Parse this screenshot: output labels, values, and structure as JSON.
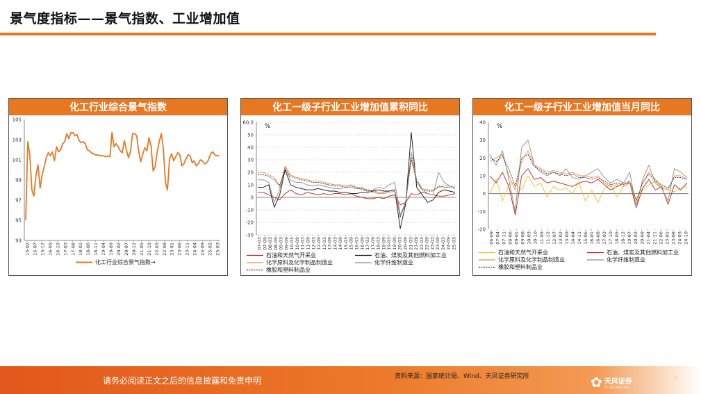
{
  "slide": {
    "title": "景气度指标——景气指数、工业增加值"
  },
  "footer": {
    "disclaimer": "请务必阅读正文之后的信息披露和免责申明",
    "source": "资料来源：国家统计局、Wind、天风证券研究所",
    "logo_cn": "天风证券",
    "logo_en": "TF SECURITIES",
    "page_number": "6"
  },
  "colors": {
    "accent": "#e87722",
    "series_orange": "#e87722",
    "series_red": "#c0201a",
    "series_black": "#111111",
    "series_gray": "#8c8c8c",
    "series_yellow": "#f0c020",
    "series_salmon": "#f28a4a",
    "series_dark": "#333333"
  },
  "chart_data": [
    {
      "type": "line",
      "title": "化工行业综合景气指数",
      "ylim": [
        93,
        105
      ],
      "yticks": [
        93,
        95,
        97,
        99,
        101,
        103,
        105
      ],
      "x_labels": [
        "15-02",
        "15-07",
        "15-12",
        "16-05",
        "16-10",
        "17-03",
        "17-08",
        "18-01",
        "18-06",
        "18-11",
        "19-04",
        "19-09",
        "20-02",
        "20-07",
        "20-12",
        "21-05",
        "21-10",
        "22-03",
        "22-08",
        "23-01",
        "23-06",
        "23-11",
        "24-04",
        "24-09",
        "25-02",
        "25-03"
      ],
      "legend_position": "bottom",
      "grid": false,
      "series": [
        {
          "name": "化工行业综合景气指数",
          "color": "#e87722",
          "values": [
            95.0,
            102.8,
            101.5,
            98.0,
            97.4,
            99.5,
            100.5,
            98.2,
            99.5,
            100.3,
            101.2,
            101.7,
            101.4,
            101.8,
            100.9,
            102.3,
            101.8,
            102.0,
            102.6,
            102.8,
            103.6,
            103.1,
            103.7,
            103.7,
            103.4,
            103.5,
            102.9,
            102.7,
            102.8,
            102.6,
            102.0,
            101.9,
            101.7,
            101.6,
            101.5,
            101.5,
            101.4,
            101.4,
            101.4,
            101.3,
            101.4,
            101.3,
            103.7,
            102.3,
            102.6,
            102.3,
            101.9,
            101.7,
            102.9,
            102.0,
            101.2,
            101.8,
            103.6,
            103.6,
            103.4,
            101.8,
            100.8,
            101.6,
            102.2,
            101.9,
            103.2,
            102.4,
            99.9,
            100.3,
            101.8,
            102.8,
            103.6,
            102.1,
            98.8,
            98.0,
            101.1,
            101.6,
            100.9,
            101.3,
            101.7,
            101.5,
            100.4,
            100.6,
            101.1,
            101.5,
            101.4,
            100.7,
            100.9,
            100.4,
            100.6,
            101.0,
            100.9,
            100.6,
            100.7,
            101.0,
            101.6,
            101.8,
            101.5,
            101.4,
            101.4
          ]
        }
      ]
    },
    {
      "type": "line",
      "title": "化工一级子行业工业增加值累积同比",
      "unit": "%",
      "ylim": [
        -30,
        60
      ],
      "yticks": [
        -30,
        -20,
        -10,
        0,
        10,
        20,
        30,
        40,
        50,
        60
      ],
      "ytick_labels": [
        "-30",
        "-20",
        "-10",
        "0",
        "10",
        "20",
        "30",
        "40",
        "50",
        "60.0"
      ],
      "x_labels": [
        "07-03",
        "07-09",
        "08-03",
        "08-09",
        "09-03",
        "09-09",
        "10-03",
        "10-09",
        "11-03",
        "11-09",
        "12-03",
        "12-09",
        "13-03",
        "13-09",
        "14-03",
        "14-09",
        "15-03",
        "15-09",
        "16-03",
        "16-09",
        "17-03",
        "17-09",
        "18-03",
        "18-09",
        "19-03",
        "19-09",
        "20-03",
        "20-09",
        "21-03",
        "21-09",
        "22-03",
        "22-09",
        "23-03",
        "23-09",
        "24-03",
        "24-09",
        "25-03"
      ],
      "legend_position": "bottom",
      "grid": true,
      "series": [
        {
          "name": "石油和天然气开采业",
          "color": "#c0201a",
          "values": [
            4,
            4,
            2,
            0,
            -2,
            3,
            6,
            3,
            2,
            4,
            3,
            2,
            3,
            2,
            3,
            3,
            2,
            3,
            1,
            0,
            -1,
            -1,
            0,
            -1,
            1,
            2,
            -6,
            -4,
            3,
            2,
            4,
            3,
            2,
            1,
            1,
            2,
            3
          ]
        },
        {
          "name": "石油、煤炭及其他燃料加工业",
          "color": "#111111",
          "values": [
            8,
            8,
            10,
            -8,
            2,
            22,
            10,
            8,
            7,
            6,
            6,
            7,
            6,
            5,
            5,
            4,
            4,
            3,
            3,
            4,
            4,
            5,
            6,
            5,
            5,
            6,
            -25,
            -5,
            52,
            8,
            2,
            -4,
            -2,
            4,
            6,
            5,
            4
          ]
        },
        {
          "name": "化学原料及化学制品制造业",
          "color": "#f28a4a",
          "values": [
            20,
            20,
            18,
            16,
            8,
            25,
            18,
            16,
            15,
            14,
            13,
            13,
            12,
            11,
            10,
            10,
            9,
            9,
            8,
            8,
            5,
            4,
            3,
            3,
            4,
            5,
            -15,
            -3,
            30,
            14,
            7,
            6,
            6,
            8,
            9,
            9,
            8
          ]
        },
        {
          "name": "化学纤维制造业",
          "color": "#8c8c8c",
          "values": [
            14,
            14,
            12,
            -4,
            6,
            24,
            14,
            12,
            12,
            10,
            9,
            10,
            9,
            8,
            7,
            7,
            8,
            10,
            8,
            6,
            5,
            6,
            8,
            7,
            10,
            12,
            -14,
            -4,
            36,
            14,
            6,
            3,
            2,
            20,
            12,
            9,
            8
          ]
        },
        {
          "name": "橡胶和塑料制品业",
          "color": "#333333",
          "dash": true,
          "values": [
            18,
            18,
            17,
            14,
            10,
            22,
            17,
            15,
            14,
            13,
            12,
            12,
            11,
            10,
            9,
            9,
            8,
            8,
            7,
            7,
            6,
            5,
            4,
            4,
            5,
            6,
            -16,
            -4,
            32,
            12,
            6,
            5,
            5,
            9,
            8,
            8,
            7
          ]
        }
      ]
    },
    {
      "type": "line",
      "title": "化工一级子行业工业增加值当月同比",
      "unit": "%",
      "ylim": [
        -20,
        40
      ],
      "yticks": [
        -20,
        -10,
        0,
        10,
        20,
        30,
        40
      ],
      "x_labels": [
        "06-09",
        "07-04",
        "07-11",
        "08-06",
        "09-01",
        "09-08",
        "10-03",
        "10-10",
        "11-05",
        "11-12",
        "12-07",
        "13-02",
        "13-09",
        "14-04",
        "14-11",
        "15-06",
        "16-01",
        "16-08",
        "17-03",
        "17-10",
        "18-05",
        "18-12",
        "19-07",
        "20-02",
        "20-09",
        "21-04",
        "21-11",
        "22-06",
        "23-01",
        "23-08",
        "24-03",
        "24-10"
      ],
      "legend_position": "bottom",
      "grid": false,
      "series": [
        {
          "name": "石油和天然气开采业",
          "color": "#f0c020",
          "values": [
            0,
            8,
            -4,
            5,
            6,
            2,
            10,
            4,
            6,
            -2,
            4,
            2,
            3,
            0,
            6,
            -4,
            2,
            -5,
            3,
            5,
            -2,
            4,
            6,
            -3,
            2,
            5,
            7,
            3,
            2,
            1,
            3,
            4
          ]
        },
        {
          "name": "石油、煤炭及其他燃料加工业",
          "color": "#c0201a",
          "values": [
            10,
            6,
            12,
            4,
            -12,
            10,
            14,
            8,
            9,
            6,
            7,
            6,
            5,
            4,
            6,
            7,
            6,
            8,
            5,
            2,
            4,
            6,
            6,
            -8,
            3,
            8,
            2,
            4,
            -6,
            5,
            2,
            6
          ]
        },
        {
          "name": "化学原料及化学制品制造业",
          "color": "#f28a4a",
          "values": [
            18,
            20,
            22,
            10,
            2,
            18,
            24,
            16,
            14,
            12,
            13,
            12,
            11,
            12,
            10,
            10,
            9,
            10,
            6,
            4,
            5,
            4,
            6,
            -6,
            6,
            12,
            8,
            4,
            2,
            10,
            10,
            8
          ]
        },
        {
          "name": "化学纤维制造业",
          "color": "#8c8c8c",
          "values": [
            22,
            16,
            24,
            8,
            -10,
            26,
            30,
            16,
            12,
            10,
            12,
            10,
            14,
            9,
            8,
            10,
            12,
            14,
            9,
            6,
            8,
            6,
            12,
            -8,
            8,
            16,
            6,
            3,
            -4,
            14,
            12,
            9
          ]
        },
        {
          "name": "橡胶和塑料制品业",
          "color": "#333333",
          "dash": true,
          "values": [
            20,
            18,
            21,
            14,
            4,
            20,
            22,
            15,
            13,
            11,
            12,
            11,
            10,
            11,
            9,
            9,
            8,
            9,
            7,
            5,
            6,
            5,
            7,
            -4,
            6,
            11,
            7,
            5,
            3,
            9,
            9,
            8
          ]
        }
      ]
    }
  ]
}
